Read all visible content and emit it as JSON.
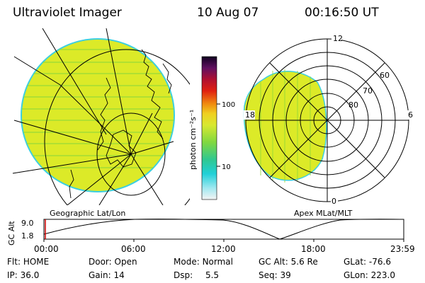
{
  "header": {
    "instrument": "Ultraviolet Imager",
    "date": "10 Aug 07",
    "time": "00:16:50 UT"
  },
  "left_map": {
    "caption": "Geographic Lat/Lon"
  },
  "right_map": {
    "caption": "Apex MLat/MLT",
    "mlt_labels": {
      "top": "12",
      "left": "18",
      "right": "6",
      "bottom": "0"
    },
    "lat_labels": [
      "60",
      "70",
      "80"
    ]
  },
  "colorbar": {
    "unit_label": "photon cm⁻²s⁻¹",
    "ticks": [
      "100",
      "10"
    ]
  },
  "altitude_plot": {
    "ylabel": "GC Alt",
    "y_ticks": [
      "9.0",
      "1.8"
    ],
    "x_ticks": [
      "00:00",
      "06:00",
      "12:00",
      "18:00",
      "23:59"
    ]
  },
  "status": {
    "row1": [
      {
        "label": "Flt:",
        "value": "HOME"
      },
      {
        "label": "Door:",
        "value": "Open"
      },
      {
        "label": "Mode:",
        "value": "Normal"
      },
      {
        "label": "GC Alt:",
        "value": "5.6 Re"
      },
      {
        "label": "GLat:",
        "value": "-76.6"
      }
    ],
    "row2": [
      {
        "label": "IP:",
        "value": "36.0"
      },
      {
        "label": "Gain:",
        "value": "14"
      },
      {
        "label": "Dsp:",
        "value": "5.5"
      },
      {
        "label": "Seq:",
        "value": "39"
      },
      {
        "label": "GLon:",
        "value": "223.0"
      }
    ]
  },
  "colors": {
    "aurora_fill": "#dcea28",
    "aurora_stripe": "#8fd83a",
    "aurora_edge": "#3ccfe0",
    "marker": "#d00000"
  }
}
